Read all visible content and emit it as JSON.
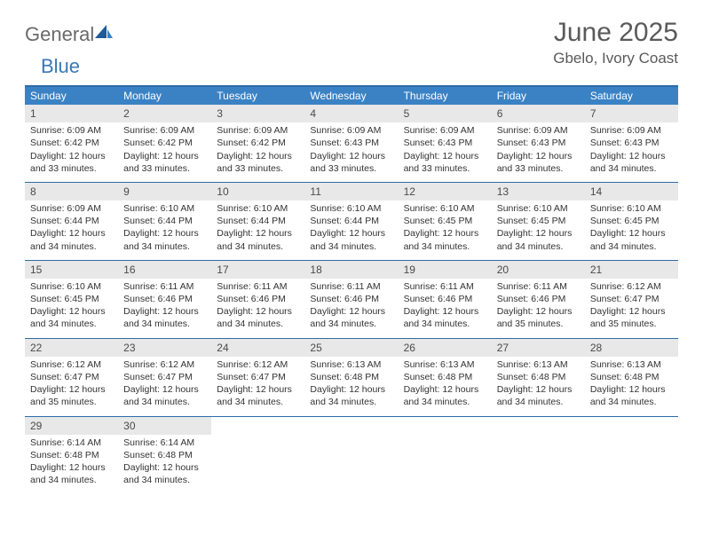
{
  "logo": {
    "text1": "General",
    "text2": "Blue"
  },
  "title": "June 2025",
  "location": "Gbelo, Ivory Coast",
  "colors": {
    "header_bg": "#3b82c4",
    "border": "#2e6ca8",
    "daynum_bg": "#e8e8e8",
    "text": "#333333",
    "title": "#5a5a5a"
  },
  "day_headers": [
    "Sunday",
    "Monday",
    "Tuesday",
    "Wednesday",
    "Thursday",
    "Friday",
    "Saturday"
  ],
  "weeks": [
    [
      {
        "n": "1",
        "sunrise": "6:09 AM",
        "sunset": "6:42 PM",
        "daylight": "12 hours and 33 minutes."
      },
      {
        "n": "2",
        "sunrise": "6:09 AM",
        "sunset": "6:42 PM",
        "daylight": "12 hours and 33 minutes."
      },
      {
        "n": "3",
        "sunrise": "6:09 AM",
        "sunset": "6:42 PM",
        "daylight": "12 hours and 33 minutes."
      },
      {
        "n": "4",
        "sunrise": "6:09 AM",
        "sunset": "6:43 PM",
        "daylight": "12 hours and 33 minutes."
      },
      {
        "n": "5",
        "sunrise": "6:09 AM",
        "sunset": "6:43 PM",
        "daylight": "12 hours and 33 minutes."
      },
      {
        "n": "6",
        "sunrise": "6:09 AM",
        "sunset": "6:43 PM",
        "daylight": "12 hours and 33 minutes."
      },
      {
        "n": "7",
        "sunrise": "6:09 AM",
        "sunset": "6:43 PM",
        "daylight": "12 hours and 34 minutes."
      }
    ],
    [
      {
        "n": "8",
        "sunrise": "6:09 AM",
        "sunset": "6:44 PM",
        "daylight": "12 hours and 34 minutes."
      },
      {
        "n": "9",
        "sunrise": "6:10 AM",
        "sunset": "6:44 PM",
        "daylight": "12 hours and 34 minutes."
      },
      {
        "n": "10",
        "sunrise": "6:10 AM",
        "sunset": "6:44 PM",
        "daylight": "12 hours and 34 minutes."
      },
      {
        "n": "11",
        "sunrise": "6:10 AM",
        "sunset": "6:44 PM",
        "daylight": "12 hours and 34 minutes."
      },
      {
        "n": "12",
        "sunrise": "6:10 AM",
        "sunset": "6:45 PM",
        "daylight": "12 hours and 34 minutes."
      },
      {
        "n": "13",
        "sunrise": "6:10 AM",
        "sunset": "6:45 PM",
        "daylight": "12 hours and 34 minutes."
      },
      {
        "n": "14",
        "sunrise": "6:10 AM",
        "sunset": "6:45 PM",
        "daylight": "12 hours and 34 minutes."
      }
    ],
    [
      {
        "n": "15",
        "sunrise": "6:10 AM",
        "sunset": "6:45 PM",
        "daylight": "12 hours and 34 minutes."
      },
      {
        "n": "16",
        "sunrise": "6:11 AM",
        "sunset": "6:46 PM",
        "daylight": "12 hours and 34 minutes."
      },
      {
        "n": "17",
        "sunrise": "6:11 AM",
        "sunset": "6:46 PM",
        "daylight": "12 hours and 34 minutes."
      },
      {
        "n": "18",
        "sunrise": "6:11 AM",
        "sunset": "6:46 PM",
        "daylight": "12 hours and 34 minutes."
      },
      {
        "n": "19",
        "sunrise": "6:11 AM",
        "sunset": "6:46 PM",
        "daylight": "12 hours and 34 minutes."
      },
      {
        "n": "20",
        "sunrise": "6:11 AM",
        "sunset": "6:46 PM",
        "daylight": "12 hours and 35 minutes."
      },
      {
        "n": "21",
        "sunrise": "6:12 AM",
        "sunset": "6:47 PM",
        "daylight": "12 hours and 35 minutes."
      }
    ],
    [
      {
        "n": "22",
        "sunrise": "6:12 AM",
        "sunset": "6:47 PM",
        "daylight": "12 hours and 35 minutes."
      },
      {
        "n": "23",
        "sunrise": "6:12 AM",
        "sunset": "6:47 PM",
        "daylight": "12 hours and 34 minutes."
      },
      {
        "n": "24",
        "sunrise": "6:12 AM",
        "sunset": "6:47 PM",
        "daylight": "12 hours and 34 minutes."
      },
      {
        "n": "25",
        "sunrise": "6:13 AM",
        "sunset": "6:48 PM",
        "daylight": "12 hours and 34 minutes."
      },
      {
        "n": "26",
        "sunrise": "6:13 AM",
        "sunset": "6:48 PM",
        "daylight": "12 hours and 34 minutes."
      },
      {
        "n": "27",
        "sunrise": "6:13 AM",
        "sunset": "6:48 PM",
        "daylight": "12 hours and 34 minutes."
      },
      {
        "n": "28",
        "sunrise": "6:13 AM",
        "sunset": "6:48 PM",
        "daylight": "12 hours and 34 minutes."
      }
    ],
    [
      {
        "n": "29",
        "sunrise": "6:14 AM",
        "sunset": "6:48 PM",
        "daylight": "12 hours and 34 minutes."
      },
      {
        "n": "30",
        "sunrise": "6:14 AM",
        "sunset": "6:48 PM",
        "daylight": "12 hours and 34 minutes."
      },
      null,
      null,
      null,
      null,
      null
    ]
  ],
  "labels": {
    "sunrise": "Sunrise: ",
    "sunset": "Sunset: ",
    "daylight": "Daylight: "
  }
}
